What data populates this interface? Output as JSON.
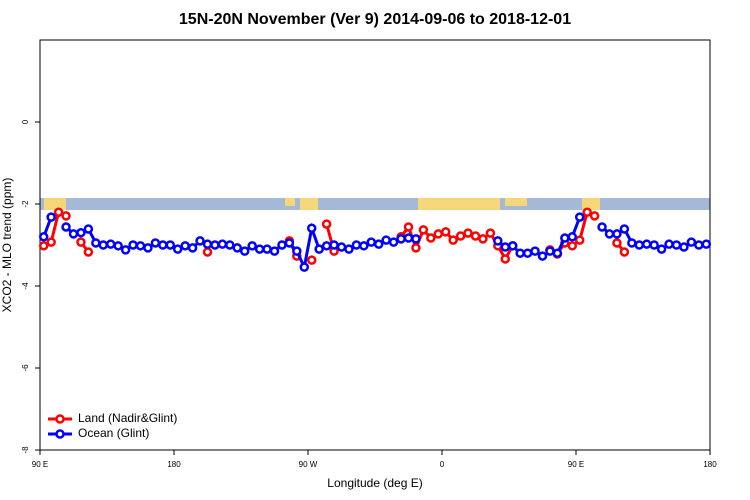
{
  "chart_data": {
    "type": "line",
    "title": "15N-20N November (Ver 9)   2014-09-06 to 2018-12-01",
    "x_label": "Longitude (deg E)",
    "y_label": "XCO2 - MLO trend (ppm)",
    "x": [
      92.5,
      97.5,
      102.5,
      107.5,
      112.5,
      117.5,
      122.5,
      127.5,
      132.5,
      137.5,
      142.5,
      147.5,
      152.5,
      157.5,
      162.5,
      167.5,
      172.5,
      177.5,
      182.5,
      187.5,
      192.5,
      197.5,
      202.5,
      207.5,
      212.5,
      217.5,
      222.5,
      227.5,
      232.5,
      237.5,
      242.5,
      247.5,
      252.5,
      257.5,
      262.5,
      267.5,
      272.5,
      277.5,
      282.5,
      287.5,
      292.5,
      297.5,
      302.5,
      307.5,
      312.5,
      317.5,
      322.5,
      327.5,
      332.5,
      337.5,
      342.5,
      347.5,
      352.5,
      357.5,
      362.5,
      367.5,
      372.5,
      377.5,
      382.5,
      387.5,
      392.5,
      397.5,
      402.5,
      407.5,
      412.5,
      417.5,
      422.5,
      427.5,
      432.5,
      437.5,
      442.5,
      447.5,
      452.5,
      457.5,
      462.5,
      467.5,
      472.5,
      477.5,
      482.5,
      487.5,
      492.5,
      497.5,
      502.5,
      507.5,
      512.5,
      517.5,
      522.5,
      527.5,
      532.5,
      537.5
    ],
    "series": [
      {
        "name": "Land (Nadir&Glint)",
        "color": "#ff0000",
        "values": [
          -3.02,
          -2.93,
          -2.2,
          -2.29,
          null,
          -2.93,
          -3.17,
          null,
          null,
          null,
          null,
          null,
          null,
          null,
          null,
          null,
          null,
          null,
          null,
          null,
          null,
          null,
          -3.17,
          null,
          null,
          null,
          null,
          null,
          null,
          null,
          null,
          null,
          null,
          -2.9,
          -3.27,
          null,
          -3.37,
          null,
          -2.49,
          -3.15,
          null,
          null,
          null,
          null,
          null,
          null,
          null,
          null,
          -2.8,
          -2.56,
          -3.07,
          -2.63,
          -2.83,
          -2.73,
          -2.68,
          -2.88,
          -2.78,
          -2.71,
          -2.78,
          -2.85,
          -2.71,
          -3.02,
          -3.34,
          -3.02,
          null,
          null,
          null,
          null,
          -3.12,
          -3.22,
          -2.95,
          -3.02,
          -2.88,
          -2.2,
          -2.29,
          null,
          null,
          -2.95,
          -3.17,
          null,
          null,
          null,
          null,
          null,
          null,
          null,
          null,
          null,
          null,
          null
        ]
      },
      {
        "name": "Ocean (Glint)",
        "color": "#0000ff",
        "values": [
          -2.8,
          -2.32,
          null,
          -2.56,
          -2.73,
          -2.7,
          -2.61,
          -2.95,
          -3.0,
          -2.98,
          -3.02,
          -3.12,
          -3.0,
          -3.02,
          -3.07,
          -2.95,
          -3.0,
          -3.0,
          -3.1,
          -3.02,
          -3.07,
          -2.9,
          -2.98,
          -3.0,
          -2.98,
          -3.0,
          -3.07,
          -3.15,
          -3.02,
          -3.1,
          -3.1,
          -3.15,
          -3.0,
          -2.95,
          -3.15,
          -3.54,
          -2.59,
          -3.1,
          -3.02,
          -3.0,
          -3.05,
          -3.1,
          -3.0,
          -3.02,
          -2.93,
          -2.98,
          -2.88,
          -2.93,
          -2.85,
          -2.83,
          -2.85,
          null,
          null,
          null,
          null,
          null,
          null,
          null,
          null,
          null,
          null,
          -2.9,
          -3.05,
          -3.02,
          -3.2,
          -3.2,
          -3.15,
          -3.27,
          -3.15,
          -3.2,
          -2.83,
          -2.8,
          -2.32,
          null,
          null,
          -2.56,
          -2.73,
          -2.73,
          -2.61,
          -2.95,
          -3.0,
          -2.98,
          -3.0,
          -3.1,
          -2.98,
          -3.0,
          -3.05,
          -2.93,
          -3.0,
          -2.98
        ]
      }
    ],
    "xlim": [
      90,
      540
    ],
    "xticks": [
      {
        "value": 90,
        "label": "90 E"
      },
      180,
      {
        "value": 270,
        "label": "90 W"
      },
      {
        "value": 360,
        "label": "0"
      },
      {
        "value": 450,
        "label": "90 E"
      },
      {
        "value": 540,
        "label": "180"
      }
    ],
    "ylim": [
      -8,
      2
    ],
    "yticks": [
      -8,
      -6,
      -4,
      -2,
      0
    ],
    "legend": "bottomleft"
  }
}
